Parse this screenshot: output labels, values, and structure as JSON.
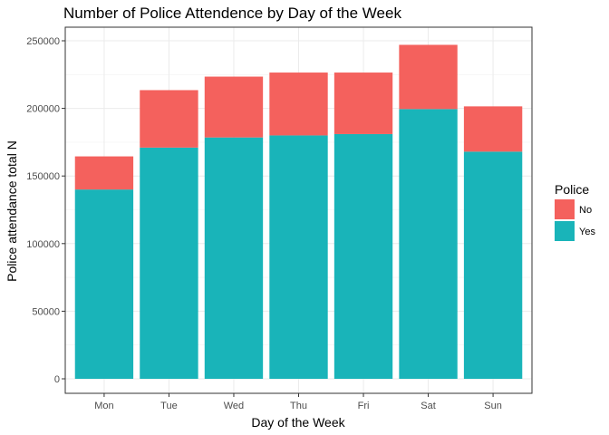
{
  "chart_data": {
    "type": "bar",
    "stacked": true,
    "title": "Number of Police Attendence by Day of the Week",
    "xlabel": "Day of the Week",
    "ylabel": "Police attendance total N",
    "categories": [
      "Mon",
      "Tue",
      "Wed",
      "Thu",
      "Fri",
      "Sat",
      "Sun"
    ],
    "series": [
      {
        "name": "Yes",
        "color": "#19B4B9",
        "values": [
          140000,
          171000,
          178500,
          180000,
          181000,
          199500,
          168000
        ]
      },
      {
        "name": "No",
        "color": "#F4615D",
        "values": [
          24500,
          42500,
          45000,
          46500,
          45500,
          47500,
          33500
        ]
      }
    ],
    "ylim": [
      0,
      250000
    ],
    "yticks": [
      "0",
      "50000",
      "100000",
      "150000",
      "200000",
      "250000"
    ],
    "grid": true,
    "legend": {
      "title": "Police",
      "position": "right",
      "entries": [
        "No",
        "Yes"
      ]
    }
  }
}
